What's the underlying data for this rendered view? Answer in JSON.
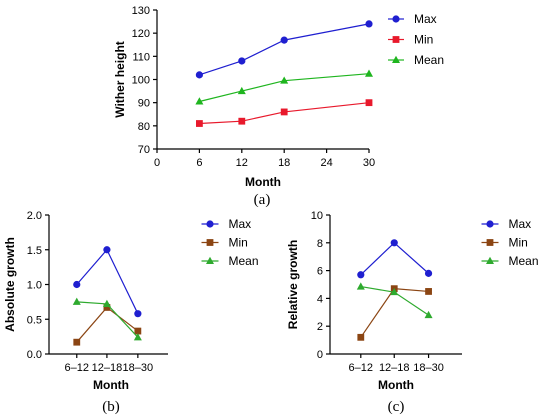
{
  "chart_data": [
    {
      "id": "a",
      "type": "line",
      "caption": "(a)",
      "xlabel": "Month",
      "ylabel": "Wither height",
      "x": [
        6,
        12,
        18,
        30
      ],
      "xlim": [
        0,
        30
      ],
      "xticks": [
        0,
        6,
        12,
        18,
        24,
        30
      ],
      "ylim": [
        70,
        130
      ],
      "yticks": [
        70,
        80,
        90,
        100,
        110,
        120,
        130
      ],
      "series": [
        {
          "name": "Max",
          "color": "#1f1fd0",
          "marker": "circle",
          "values": [
            102,
            108,
            117,
            124
          ]
        },
        {
          "name": "Min",
          "color": "#e8192c",
          "marker": "square",
          "values": [
            81,
            82,
            86,
            90
          ]
        },
        {
          "name": "Mean",
          "color": "#1fb51f",
          "marker": "triangle",
          "values": [
            90.5,
            95,
            99.5,
            102.5
          ]
        }
      ]
    },
    {
      "id": "b",
      "type": "line",
      "caption": "(b)",
      "xlabel": "Month",
      "ylabel": "Absolute growth",
      "categories": [
        "6–12",
        "12–18",
        "18–30"
      ],
      "ylim": [
        0,
        2.0
      ],
      "yticks": [
        "0.0",
        "0.5",
        "1.0",
        "1.5",
        "2.0"
      ],
      "series": [
        {
          "name": "Max",
          "color": "#1f1fd0",
          "marker": "circle",
          "values": [
            1.0,
            1.5,
            0.58
          ]
        },
        {
          "name": "Min",
          "color": "#8b4513",
          "marker": "square",
          "values": [
            0.17,
            0.67,
            0.33
          ]
        },
        {
          "name": "Mean",
          "color": "#2eaa2e",
          "marker": "triangle",
          "values": [
            0.75,
            0.72,
            0.24
          ]
        }
      ]
    },
    {
      "id": "c",
      "type": "line",
      "caption": "(c)",
      "xlabel": "Month",
      "ylabel": "Relative growth",
      "categories": [
        "6–12",
        "12–18",
        "18–30"
      ],
      "ylim": [
        0,
        10
      ],
      "yticks": [
        "0",
        "2",
        "4",
        "6",
        "8",
        "10"
      ],
      "series": [
        {
          "name": "Max",
          "color": "#1f1fd0",
          "marker": "circle",
          "values": [
            5.7,
            8.0,
            5.8
          ]
        },
        {
          "name": "Min",
          "color": "#8b4513",
          "marker": "square",
          "values": [
            1.2,
            4.7,
            4.5
          ]
        },
        {
          "name": "Mean",
          "color": "#2eaa2e",
          "marker": "triangle",
          "values": [
            4.85,
            4.45,
            2.8
          ]
        }
      ]
    }
  ]
}
